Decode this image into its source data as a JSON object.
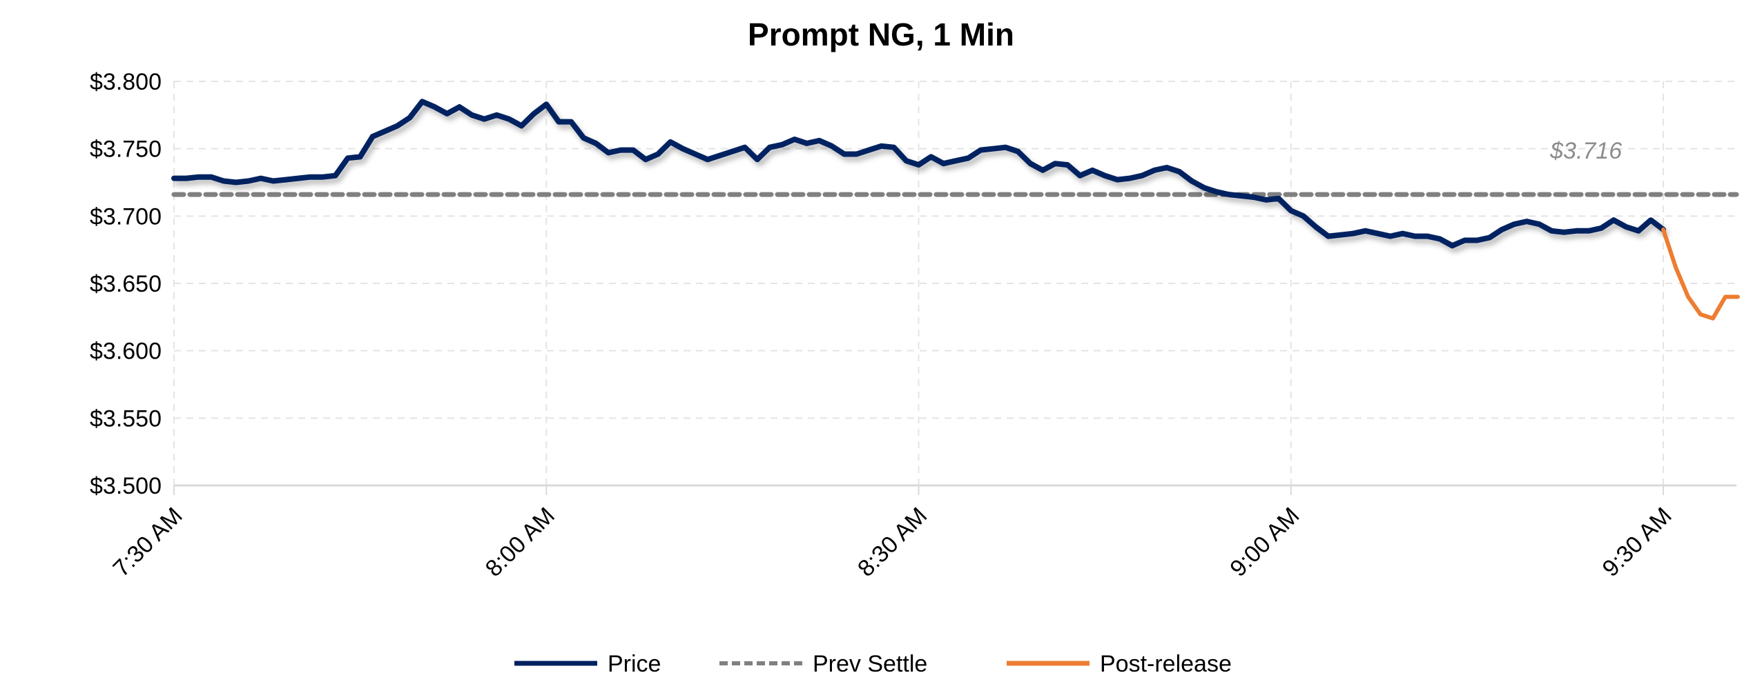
{
  "chart_data": {
    "type": "line",
    "title": "Prompt NG, 1 Min",
    "xlabel": "",
    "ylabel": "",
    "ylim": [
      3.5,
      3.8
    ],
    "yticks": [
      "$3.500",
      "$3.550",
      "$3.600",
      "$3.650",
      "$3.700",
      "$3.750",
      "$3.800"
    ],
    "ytick_values": [
      3.5,
      3.55,
      3.6,
      3.65,
      3.7,
      3.75,
      3.8
    ],
    "xlim": [
      "7:30",
      "9:36"
    ],
    "xticks": [
      "7:30 AM",
      "8:00 AM",
      "8:30 AM",
      "9:00 AM",
      "9:30 AM"
    ],
    "xtick_values": [
      "7:30",
      "8:00",
      "8:30",
      "9:00",
      "9:30"
    ],
    "grid": true,
    "legend_position": "bottom",
    "series": [
      {
        "name": "Price",
        "color": "#002060",
        "style": "solid",
        "x": [
          "7:30",
          "7:31",
          "7:32",
          "7:33",
          "7:34",
          "7:35",
          "7:36",
          "7:37",
          "7:38",
          "7:39",
          "7:40",
          "7:41",
          "7:42",
          "7:43",
          "7:44",
          "7:45",
          "7:46",
          "7:47",
          "7:48",
          "7:49",
          "7:50",
          "7:51",
          "7:52",
          "7:53",
          "7:54",
          "7:55",
          "7:56",
          "7:57",
          "7:58",
          "7:59",
          "8:00",
          "8:01",
          "8:02",
          "8:03",
          "8:04",
          "8:05",
          "8:06",
          "8:07",
          "8:08",
          "8:09",
          "8:10",
          "8:11",
          "8:12",
          "8:13",
          "8:14",
          "8:15",
          "8:16",
          "8:17",
          "8:18",
          "8:19",
          "8:20",
          "8:21",
          "8:22",
          "8:23",
          "8:24",
          "8:25",
          "8:26",
          "8:27",
          "8:28",
          "8:29",
          "8:30",
          "8:31",
          "8:32",
          "8:33",
          "8:34",
          "8:35",
          "8:36",
          "8:37",
          "8:38",
          "8:39",
          "8:40",
          "8:41",
          "8:42",
          "8:43",
          "8:44",
          "8:45",
          "8:46",
          "8:47",
          "8:48",
          "8:49",
          "8:50",
          "8:51",
          "8:52",
          "8:53",
          "8:54",
          "8:55",
          "8:56",
          "8:57",
          "8:58",
          "8:59",
          "9:00",
          "9:01",
          "9:02",
          "9:03",
          "9:04",
          "9:05",
          "9:06",
          "9:07",
          "9:08",
          "9:09",
          "9:10",
          "9:11",
          "9:12",
          "9:13",
          "9:14",
          "9:15",
          "9:16",
          "9:17",
          "9:18",
          "9:19",
          "9:20",
          "9:21",
          "9:22",
          "9:23",
          "9:24",
          "9:25",
          "9:26",
          "9:27",
          "9:28",
          "9:29",
          "9:30"
        ],
        "y": [
          3.728,
          3.728,
          3.729,
          3.729,
          3.726,
          3.725,
          3.726,
          3.728,
          3.726,
          3.727,
          3.728,
          3.729,
          3.729,
          3.73,
          3.743,
          3.744,
          3.759,
          3.763,
          3.767,
          3.773,
          3.785,
          3.781,
          3.776,
          3.781,
          3.775,
          3.772,
          3.775,
          3.772,
          3.767,
          3.776,
          3.783,
          3.77,
          3.77,
          3.758,
          3.754,
          3.747,
          3.749,
          3.749,
          3.742,
          3.746,
          3.755,
          3.75,
          3.746,
          3.742,
          3.745,
          3.748,
          3.751,
          3.742,
          3.751,
          3.753,
          3.757,
          3.754,
          3.756,
          3.752,
          3.746,
          3.746,
          3.749,
          3.752,
          3.751,
          3.741,
          3.738,
          3.744,
          3.739,
          3.741,
          3.743,
          3.749,
          3.75,
          3.751,
          3.748,
          3.739,
          3.734,
          3.739,
          3.738,
          3.73,
          3.734,
          3.73,
          3.727,
          3.728,
          3.73,
          3.734,
          3.736,
          3.733,
          3.726,
          3.721,
          3.718,
          3.716,
          3.715,
          3.714,
          3.712,
          3.713,
          3.704,
          3.7,
          3.692,
          3.685,
          3.686,
          3.687,
          3.689,
          3.687,
          3.685,
          3.687,
          3.685,
          3.685,
          3.683,
          3.678,
          3.682,
          3.682,
          3.684,
          3.69,
          3.694,
          3.696,
          3.694,
          3.689,
          3.688,
          3.689,
          3.689,
          3.691,
          3.697,
          3.692,
          3.689,
          3.697,
          3.69
        ]
      },
      {
        "name": "Prev Settle",
        "color": "#808080",
        "style": "dashed",
        "x": [
          "7:30",
          "9:36"
        ],
        "y": [
          3.716,
          3.716
        ]
      },
      {
        "name": "Post-release",
        "color": "#ED7D31",
        "style": "solid",
        "x": [
          "9:30",
          "9:31",
          "9:32",
          "9:33",
          "9:34",
          "9:35",
          "9:36"
        ],
        "y": [
          3.69,
          3.662,
          3.64,
          3.627,
          3.624,
          3.64,
          3.64
        ]
      }
    ],
    "annotations": [
      {
        "text": "$3.716",
        "x": "9:25",
        "y": 3.716
      }
    ]
  }
}
